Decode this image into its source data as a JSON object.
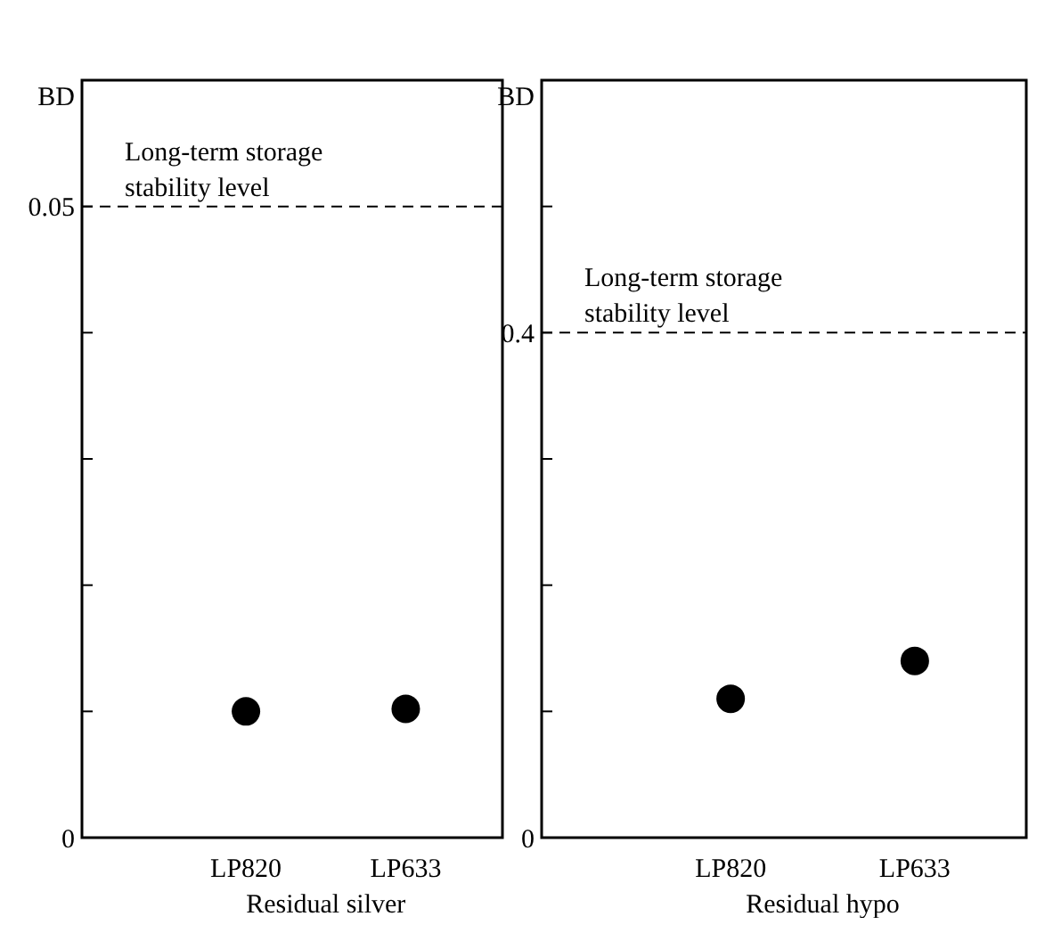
{
  "chart_data": [
    {
      "type": "scatter",
      "ylabel": "BD",
      "xlabel": "Residual silver",
      "categories": [
        "LP820",
        "LP633"
      ],
      "values": [
        0.01,
        0.0102
      ],
      "color": "#000000",
      "marker": "circle",
      "ylim": [
        0,
        0.06
      ],
      "yticks": [
        0,
        {
          "value": 0.01,
          "label": null
        },
        {
          "value": 0.02,
          "label": null
        },
        {
          "value": 0.03,
          "label": null
        },
        {
          "value": 0.04,
          "label": null
        },
        0.05,
        {
          "value": 0.06,
          "label": null
        }
      ],
      "ref_lines": [
        {
          "axis": "y",
          "value": 0.05,
          "label": "Long-term storage stability level",
          "line_style": "dashed"
        }
      ],
      "grid": false
    },
    {
      "type": "scatter",
      "ylabel": "BD",
      "xlabel": "Residual hypo",
      "categories": [
        "LP820",
        "LP633"
      ],
      "values": [
        0.11,
        0.14
      ],
      "color": "#000000",
      "marker": "circle",
      "ylim": [
        0,
        0.6
      ],
      "yticks": [
        0,
        {
          "value": 0.1,
          "label": null
        },
        {
          "value": 0.2,
          "label": null
        },
        {
          "value": 0.3,
          "label": null
        },
        0.4,
        {
          "value": 0.5,
          "label": null
        },
        {
          "value": 0.6,
          "label": null
        }
      ],
      "ref_lines": [
        {
          "axis": "y",
          "value": 0.4,
          "label": "Long-term storage stability level",
          "line_style": "dashed"
        }
      ],
      "grid": false
    }
  ]
}
